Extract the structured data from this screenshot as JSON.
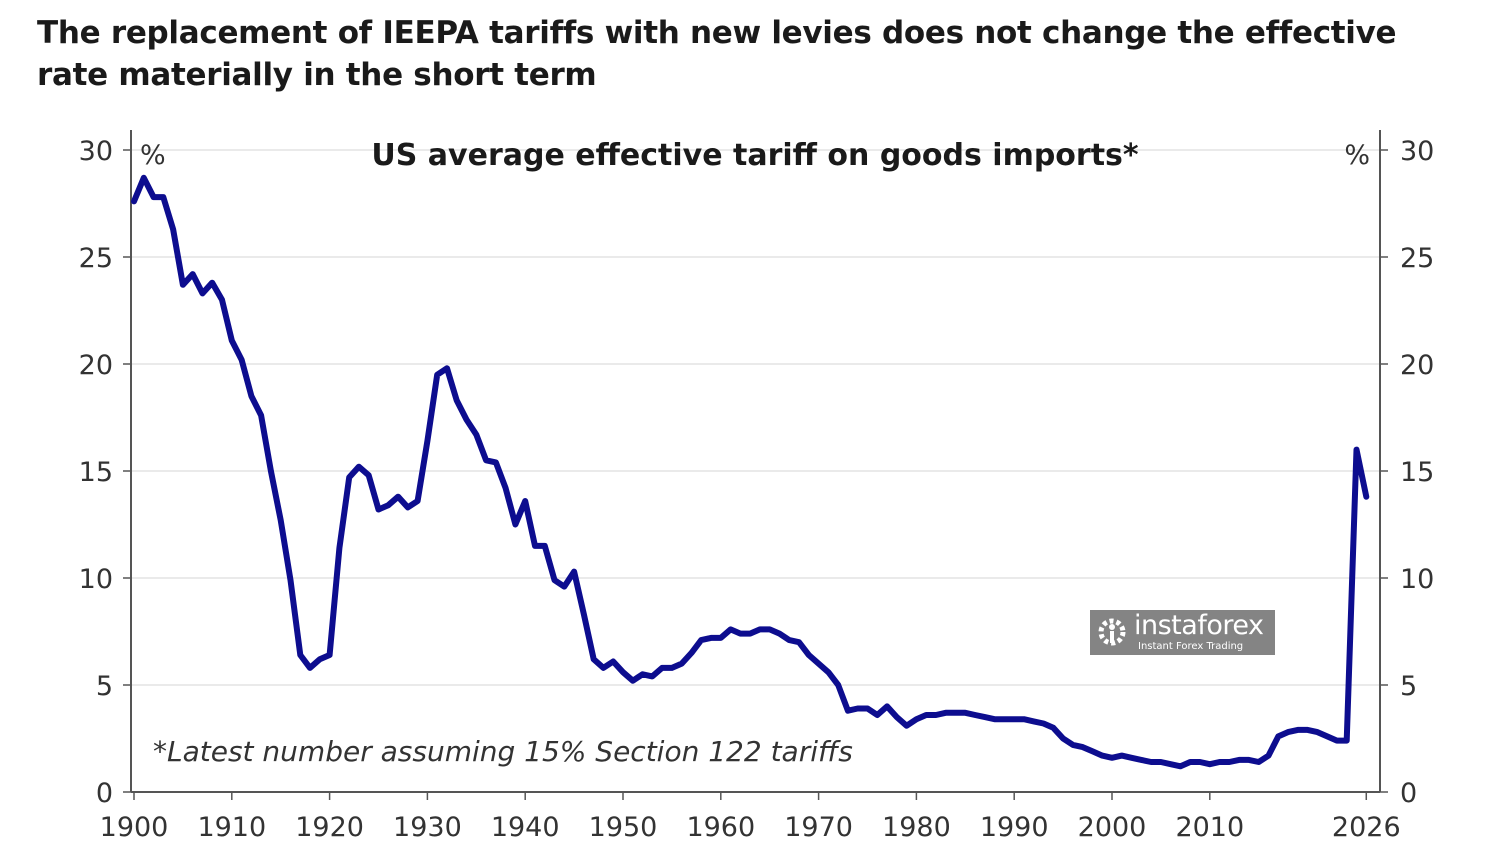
{
  "title": "The replacement of IEEPA tariffs with new levies does not change the effective rate materially in the short term",
  "watermark": {
    "brand": "instaforex",
    "tagline": "Instant Forex Trading"
  },
  "chart_data": {
    "type": "line",
    "title": "US average effective tariff on goods imports*",
    "annotation": "*Latest number assuming 15% Section 122 tariffs",
    "ylabel_left": "%",
    "ylabel_right": "%",
    "ylim": [
      0,
      30
    ],
    "xlim": [
      1900,
      2027
    ],
    "yticks": [
      0,
      5,
      10,
      15,
      20,
      25,
      30
    ],
    "xticks": [
      "1900",
      "1910",
      "1920",
      "1930",
      "1940",
      "1950",
      "1960",
      "1970",
      "1980",
      "1990",
      "2000",
      "2010",
      "2026"
    ],
    "xtick_values": [
      1900,
      1910,
      1920,
      1930,
      1940,
      1950,
      1960,
      1970,
      1980,
      1990,
      2000,
      2010,
      2026
    ],
    "grid": "horizontal",
    "line_color": "#0d0d8f",
    "series": [
      {
        "x_start": 1900,
        "values": [
          27.6,
          28.7,
          27.8,
          27.8,
          26.3,
          23.7,
          24.2,
          23.3,
          23.8,
          23.0,
          21.1,
          20.2,
          18.5,
          17.6,
          15.0,
          12.7,
          9.9,
          6.4,
          5.8,
          6.2,
          6.4,
          11.4,
          14.7,
          15.2,
          14.8,
          13.2,
          13.4,
          13.8,
          13.3,
          13.6,
          16.4,
          19.5,
          19.8,
          18.3,
          17.4,
          16.7,
          15.5,
          15.4,
          14.2,
          12.5,
          13.6,
          11.5,
          11.5,
          9.9,
          9.6,
          10.3,
          8.3,
          6.2,
          5.8,
          6.1,
          5.6,
          5.2,
          5.5,
          5.4,
          5.8,
          5.8,
          6.0,
          6.5,
          7.1,
          7.2,
          7.2,
          7.6,
          7.4,
          7.4,
          7.6,
          7.6,
          7.4,
          7.1,
          7.0,
          6.4,
          6.0,
          5.6,
          5.0,
          3.8,
          3.9,
          3.9,
          3.6,
          4.0,
          3.5,
          3.1,
          3.4,
          3.6,
          3.6,
          3.7,
          3.7,
          3.7,
          3.6,
          3.5,
          3.4,
          3.4,
          3.4,
          3.4,
          3.3,
          3.2,
          3.0,
          2.5,
          2.2,
          2.1,
          1.9,
          1.7,
          1.6,
          1.7,
          1.6,
          1.5,
          1.4,
          1.4,
          1.3,
          1.2,
          1.4,
          1.4,
          1.3,
          1.4,
          1.4,
          1.5,
          1.5,
          1.4,
          1.7,
          2.6,
          2.8,
          2.9,
          2.9,
          2.8,
          2.6,
          2.4,
          2.4,
          16.0,
          13.8
        ]
      }
    ]
  }
}
